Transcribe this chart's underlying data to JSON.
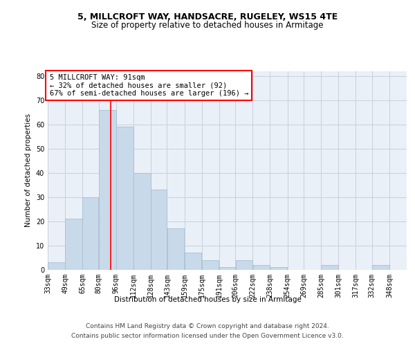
{
  "title": "5, MILLCROFT WAY, HANDSACRE, RUGELEY, WS15 4TE",
  "subtitle": "Size of property relative to detached houses in Armitage",
  "xlabel": "Distribution of detached houses by size in Armitage",
  "ylabel": "Number of detached properties",
  "bar_color": "#c8d9ea",
  "bar_edge_color": "#a8bfd0",
  "grid_color": "#c8d0dc",
  "background_color": "#eaf0f8",
  "annotation_text": "5 MILLCROFT WAY: 91sqm\n← 32% of detached houses are smaller (92)\n67% of semi-detached houses are larger (196) →",
  "annotation_box_color": "white",
  "annotation_box_edge": "red",
  "vline_x": 91,
  "vline_color": "red",
  "categories": [
    "33sqm",
    "49sqm",
    "65sqm",
    "80sqm",
    "96sqm",
    "112sqm",
    "128sqm",
    "143sqm",
    "159sqm",
    "175sqm",
    "191sqm",
    "206sqm",
    "222sqm",
    "238sqm",
    "254sqm",
    "269sqm",
    "285sqm",
    "301sqm",
    "317sqm",
    "332sqm",
    "348sqm"
  ],
  "bin_edges": [
    33,
    49,
    65,
    80,
    96,
    112,
    128,
    143,
    159,
    175,
    191,
    206,
    222,
    238,
    254,
    269,
    285,
    301,
    317,
    332,
    348,
    364
  ],
  "values": [
    3,
    21,
    30,
    66,
    59,
    40,
    33,
    17,
    7,
    4,
    1,
    4,
    2,
    1,
    0,
    0,
    2,
    0,
    0,
    2,
    0
  ],
  "ylim": [
    0,
    82
  ],
  "yticks": [
    0,
    10,
    20,
    30,
    40,
    50,
    60,
    70,
    80
  ],
  "footer_line1": "Contains HM Land Registry data © Crown copyright and database right 2024.",
  "footer_line2": "Contains public sector information licensed under the Open Government Licence v3.0.",
  "title_fontsize": 9,
  "subtitle_fontsize": 8.5,
  "axis_label_fontsize": 7.5,
  "tick_fontsize": 7,
  "annotation_fontsize": 7.5,
  "footer_fontsize": 6.5
}
